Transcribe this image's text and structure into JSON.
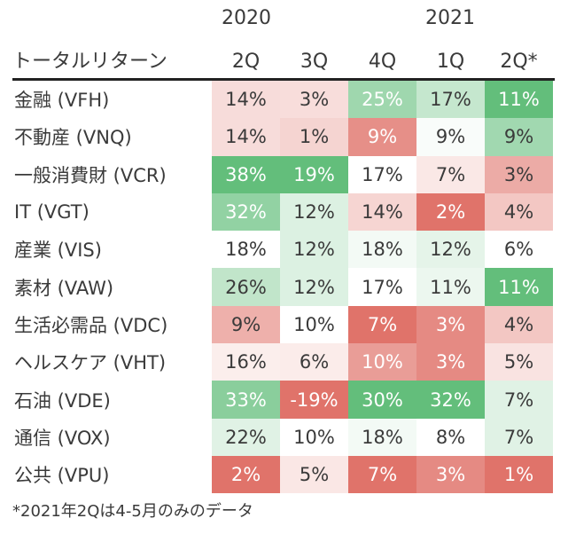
{
  "header": {
    "title": "トータルリターン",
    "years": [
      "2020",
      "2021"
    ],
    "quarters": [
      "2Q",
      "3Q",
      "4Q",
      "1Q",
      "2Q*"
    ]
  },
  "footnote": "*2021年2Qは4-5月のみのデータ",
  "chart_data": {
    "type": "heatmap",
    "title": "トータルリターン",
    "columns": [
      "2020 2Q",
      "2020 3Q",
      "2020 4Q",
      "2021 1Q",
      "2021 2Q*"
    ],
    "rows": [
      {
        "label": "金融 (VFH)",
        "values": [
          14,
          3,
          25,
          17,
          11
        ]
      },
      {
        "label": "不動産 (VNQ)",
        "values": [
          14,
          1,
          9,
          9,
          9
        ]
      },
      {
        "label": "一般消費財 (VCR)",
        "values": [
          38,
          19,
          17,
          7,
          3
        ]
      },
      {
        "label": "IT (VGT)",
        "values": [
          32,
          12,
          14,
          2,
          4
        ]
      },
      {
        "label": "産業 (VIS)",
        "values": [
          18,
          12,
          18,
          12,
          6
        ]
      },
      {
        "label": "素材 (VAW)",
        "values": [
          26,
          12,
          17,
          11,
          11
        ]
      },
      {
        "label": "生活必需品 (VDC)",
        "values": [
          9,
          10,
          7,
          3,
          4
        ]
      },
      {
        "label": "ヘルスケア (VHT)",
        "values": [
          16,
          6,
          10,
          3,
          5
        ]
      },
      {
        "label": "石油 (VDE)",
        "values": [
          33,
          -19,
          30,
          32,
          7
        ]
      },
      {
        "label": "通信 (VOX)",
        "values": [
          22,
          10,
          18,
          8,
          7
        ]
      },
      {
        "label": "公共 (VPU)",
        "values": [
          2,
          5,
          7,
          3,
          1
        ]
      }
    ],
    "value_suffix": "%",
    "colors": {
      "high": "#63be7b",
      "mid": "#ffffff",
      "low": "#e0736a"
    }
  }
}
